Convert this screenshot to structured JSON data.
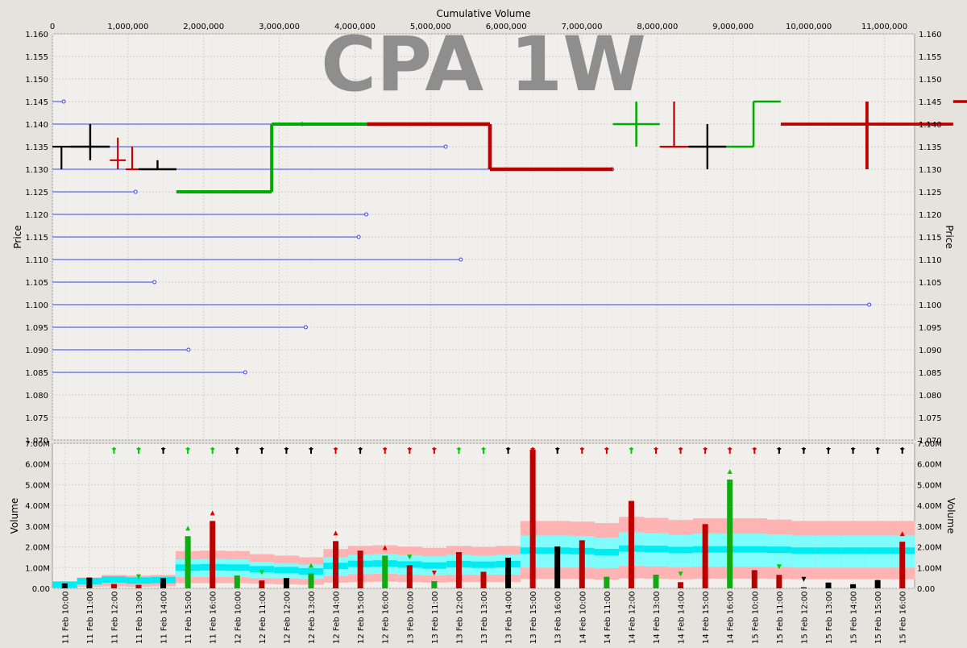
{
  "chart_data": [
    {
      "type": "ohlc",
      "title": "CPA 1W",
      "x_axis_title": "Cumulative Volume",
      "y_axis_title": "Price",
      "x_ticks": [
        0,
        1000000,
        2000000,
        3000000,
        4000000,
        5000000,
        6000000,
        7000000,
        8000000,
        9000000,
        10000000,
        11000000
      ],
      "x_tick_labels": [
        "0",
        "1,000,000",
        "2,000,000",
        "3,000,000",
        "4,000,000",
        "5,000,000",
        "6,000,000",
        "7,000,000",
        "8,000,000",
        "9,000,000",
        "10,000,000",
        "11,000,000"
      ],
      "xlim": [
        0,
        11400000
      ],
      "ylim": [
        1.07,
        1.16
      ],
      "y_ticks": [
        "1.070",
        "1.075",
        "1.080",
        "1.085",
        "1.090",
        "1.095",
        "1.100",
        "1.105",
        "1.110",
        "1.115",
        "1.120",
        "1.125",
        "1.130",
        "1.135",
        "1.140",
        "1.145",
        "1.150",
        "1.155",
        "1.160"
      ],
      "grid": true,
      "bars": [
        {
          "o": 1.135,
          "h": 1.135,
          "l": 1.13,
          "c": 1.135,
          "vol": 0.24,
          "color": "#000000"
        },
        {
          "o": 1.135,
          "h": 1.14,
          "l": 1.132,
          "c": 1.135,
          "vol": 0.52,
          "color": "#000000"
        },
        {
          "o": 1.132,
          "h": 1.137,
          "l": 1.13,
          "c": 1.132,
          "vol": 0.21,
          "color": "#cc0000"
        },
        {
          "o": 1.13,
          "h": 1.135,
          "l": 1.13,
          "c": 1.13,
          "vol": 0.17,
          "color": "#cc0000"
        },
        {
          "o": 1.13,
          "h": 1.132,
          "l": 1.13,
          "c": 1.13,
          "vol": 0.5,
          "color": "#000000"
        },
        {
          "o": 1.125,
          "h": 1.14,
          "l": 1.125,
          "c": 1.14,
          "vol": 2.52,
          "color": "#00aa00"
        },
        {
          "o": 1.14,
          "h": 1.14,
          "l": 1.13,
          "c": 1.13,
          "vol": 3.25,
          "color": "#bb0000"
        },
        {
          "o": 1.14,
          "h": 1.145,
          "l": 1.135,
          "c": 1.14,
          "vol": 0.62,
          "color": "#00aa00"
        },
        {
          "o": 1.135,
          "h": 1.145,
          "l": 1.135,
          "c": 1.135,
          "vol": 0.38,
          "color": "#cc0000"
        },
        {
          "o": 1.135,
          "h": 1.14,
          "l": 1.13,
          "c": 1.135,
          "vol": 0.5,
          "color": "#000000"
        },
        {
          "o": 1.135,
          "h": 1.145,
          "l": 1.135,
          "c": 1.145,
          "vol": 0.72,
          "color": "#00aa00"
        },
        {
          "o": 1.14,
          "h": 1.145,
          "l": 1.13,
          "c": 1.14,
          "vol": 2.28,
          "color": "#bb0000"
        },
        {
          "o": 1.145,
          "h": 1.145,
          "l": 1.13,
          "c": 1.13,
          "vol": 1.82,
          "color": "#bb0000"
        },
        {
          "o": 1.13,
          "h": 1.135,
          "l": 1.13,
          "c": 1.135,
          "vol": 1.58,
          "color": "#00aa00"
        },
        {
          "o": 1.135,
          "h": 1.135,
          "l": 1.115,
          "c": 1.127,
          "vol": 1.12,
          "color": "#cc0000"
        },
        {
          "o": 1.13,
          "h": 1.135,
          "l": 1.125,
          "c": 1.13,
          "vol": 0.35,
          "color": "#00aa00"
        },
        {
          "o": 1.13,
          "h": 1.13,
          "l": 1.12,
          "c": 1.12,
          "vol": 1.75,
          "color": "#bb0000"
        },
        {
          "o": 1.125,
          "h": 1.125,
          "l": 1.117,
          "c": 1.117,
          "vol": 0.8,
          "color": "#cc0000"
        },
        {
          "o": 1.115,
          "h": 1.12,
          "l": 1.115,
          "c": 1.117,
          "vol": 1.48,
          "color": "#000000"
        },
        {
          "o": 1.12,
          "h": 1.12,
          "l": 1.105,
          "c": 1.115,
          "vol": 6.7,
          "color": "#bb0000"
        },
        {
          "o": 1.115,
          "h": 1.115,
          "l": 1.115,
          "c": 1.115,
          "vol": 2.02,
          "color": "#000000"
        },
        {
          "o": 1.12,
          "h": 1.12,
          "l": 1.097,
          "c": 1.1,
          "vol": 2.32,
          "color": "#bb0000"
        },
        {
          "o": 1.1,
          "h": 1.11,
          "l": 1.095,
          "c": 1.107,
          "vol": 0.56,
          "color": "#00aa00"
        },
        {
          "o": 1.107,
          "h": 1.107,
          "l": 1.095,
          "c": 1.097,
          "vol": 4.22,
          "color": "#bb0000"
        },
        {
          "o": 1.1,
          "h": 1.102,
          "l": 1.097,
          "c": 1.1,
          "vol": 0.66,
          "color": "#00aa00"
        },
        {
          "o": 1.102,
          "h": 1.102,
          "l": 1.095,
          "c": 1.097,
          "vol": 0.3,
          "color": "#cc0000"
        },
        {
          "o": 1.1,
          "h": 1.1,
          "l": 1.09,
          "c": 1.095,
          "vol": 3.1,
          "color": "#bb0000"
        },
        {
          "o": 1.095,
          "h": 1.1,
          "l": 1.095,
          "c": 1.1,
          "vol": 5.25,
          "color": "#00aa00"
        },
        {
          "o": 1.1,
          "h": 1.1,
          "l": 1.09,
          "c": 1.095,
          "vol": 0.88,
          "color": "#cc0000"
        },
        {
          "o": 1.095,
          "h": 1.095,
          "l": 1.085,
          "c": 1.09,
          "vol": 0.65,
          "color": "#cc0000"
        },
        {
          "o": 1.09,
          "h": 1.09,
          "l": 1.085,
          "c": 1.09,
          "vol": 0.05,
          "color": "#000000"
        },
        {
          "o": 1.09,
          "h": 1.095,
          "l": 1.085,
          "c": 1.09,
          "vol": 0.28,
          "color": "#000000"
        },
        {
          "o": 1.09,
          "h": 1.095,
          "l": 1.085,
          "c": 1.09,
          "vol": 0.2,
          "color": "#000000"
        },
        {
          "o": 1.09,
          "h": 1.09,
          "l": 1.085,
          "c": 1.09,
          "vol": 0.4,
          "color": "#000000"
        },
        {
          "o": 1.09,
          "h": 1.09,
          "l": 1.085,
          "c": 1.085,
          "vol": 2.25,
          "color": "#bb0000"
        }
      ],
      "price_volume_profile": [
        {
          "price": 1.145,
          "volume": 150000
        },
        {
          "price": 1.14,
          "volume": 3300000
        },
        {
          "price": 1.135,
          "volume": 5200000
        },
        {
          "price": 1.13,
          "volume": 7400000
        },
        {
          "price": 1.125,
          "volume": 1100000
        },
        {
          "price": 1.12,
          "volume": 4150000
        },
        {
          "price": 1.115,
          "volume": 4050000
        },
        {
          "price": 1.11,
          "volume": 5400000
        },
        {
          "price": 1.105,
          "volume": 1350000
        },
        {
          "price": 1.1,
          "volume": 10800000
        },
        {
          "price": 1.095,
          "volume": 3350000
        },
        {
          "price": 1.09,
          "volume": 1800000
        },
        {
          "price": 1.085,
          "volume": 2550000
        }
      ]
    },
    {
      "type": "bar",
      "y_axis_title": "Volume",
      "ylim": [
        0,
        7000000
      ],
      "y_tick_labels": [
        "0.00",
        "1.00M",
        "2.00M",
        "3.00M",
        "4.00M",
        "5.00M",
        "6.00M",
        "7.00M"
      ],
      "categories": [
        "11 Feb 10:00",
        "11 Feb 11:00",
        "11 Feb 12:00",
        "11 Feb 13:00",
        "11 Feb 14:00",
        "11 Feb 15:00",
        "11 Feb 16:00",
        "12 Feb 10:00",
        "12 Feb 11:00",
        "12 Feb 12:00",
        "12 Feb 13:00",
        "12 Feb 14:00",
        "12 Feb 15:00",
        "12 Feb 16:00",
        "13 Feb 10:00",
        "13 Feb 11:00",
        "13 Feb 12:00",
        "13 Feb 13:00",
        "13 Feb 14:00",
        "13 Feb 15:00",
        "13 Feb 16:00",
        "14 Feb 10:00",
        "14 Feb 11:00",
        "14 Feb 12:00",
        "14 Feb 13:00",
        "14 Feb 14:00",
        "14 Feb 15:00",
        "14 Feb 16:00",
        "15 Feb 10:00",
        "15 Feb 11:00",
        "15 Feb 12:00",
        "15 Feb 13:00",
        "15 Feb 14:00",
        "15 Feb 15:00",
        "15 Feb 16:00"
      ],
      "bands": [
        {
          "outer_hi": 0.25,
          "inner_hi": 0.22,
          "center": 0.18,
          "inner_lo": 0.12,
          "outer_lo": 0.05
        },
        {
          "outer_hi": 0.52,
          "inner_hi": 0.45,
          "center": 0.35,
          "inner_lo": 0.2,
          "outer_lo": 0.08
        },
        {
          "outer_hi": 0.65,
          "inner_hi": 0.55,
          "center": 0.42,
          "inner_lo": 0.25,
          "outer_lo": 0.1
        },
        {
          "outer_hi": 0.62,
          "inner_hi": 0.5,
          "center": 0.38,
          "inner_lo": 0.22,
          "outer_lo": 0.08
        },
        {
          "outer_hi": 0.65,
          "inner_hi": 0.52,
          "center": 0.4,
          "inner_lo": 0.25,
          "outer_lo": 0.1
        },
        {
          "outer_hi": 1.8,
          "inner_hi": 1.4,
          "center": 1.0,
          "inner_lo": 0.55,
          "outer_lo": 0.25
        },
        {
          "outer_hi": 1.82,
          "inner_hi": 1.42,
          "center": 1.02,
          "inner_lo": 0.55,
          "outer_lo": 0.25
        },
        {
          "outer_hi": 1.8,
          "inner_hi": 1.4,
          "center": 1.0,
          "inner_lo": 0.55,
          "outer_lo": 0.25
        },
        {
          "outer_hi": 1.65,
          "inner_hi": 1.28,
          "center": 0.92,
          "inner_lo": 0.5,
          "outer_lo": 0.22
        },
        {
          "outer_hi": 1.58,
          "inner_hi": 1.22,
          "center": 0.88,
          "inner_lo": 0.48,
          "outer_lo": 0.2
        },
        {
          "outer_hi": 1.5,
          "inner_hi": 1.15,
          "center": 0.82,
          "inner_lo": 0.45,
          "outer_lo": 0.18
        },
        {
          "outer_hi": 1.9,
          "inner_hi": 1.5,
          "center": 1.08,
          "inner_lo": 0.6,
          "outer_lo": 0.28
        },
        {
          "outer_hi": 2.05,
          "inner_hi": 1.62,
          "center": 1.18,
          "inner_lo": 0.68,
          "outer_lo": 0.3
        },
        {
          "outer_hi": 2.08,
          "inner_hi": 1.65,
          "center": 1.2,
          "inner_lo": 0.7,
          "outer_lo": 0.32
        },
        {
          "outer_hi": 2.02,
          "inner_hi": 1.6,
          "center": 1.15,
          "inner_lo": 0.66,
          "outer_lo": 0.3
        },
        {
          "outer_hi": 1.95,
          "inner_hi": 1.55,
          "center": 1.1,
          "inner_lo": 0.62,
          "outer_lo": 0.28
        },
        {
          "outer_hi": 2.05,
          "inner_hi": 1.62,
          "center": 1.17,
          "inner_lo": 0.66,
          "outer_lo": 0.3
        },
        {
          "outer_hi": 2.0,
          "inner_hi": 1.58,
          "center": 1.14,
          "inner_lo": 0.65,
          "outer_lo": 0.3
        },
        {
          "outer_hi": 2.05,
          "inner_hi": 1.62,
          "center": 1.17,
          "inner_lo": 0.66,
          "outer_lo": 0.3
        },
        {
          "outer_hi": 3.25,
          "inner_hi": 2.55,
          "center": 1.82,
          "inner_lo": 1.0,
          "outer_lo": 0.45
        },
        {
          "outer_hi": 3.25,
          "inner_hi": 2.55,
          "center": 1.82,
          "inner_lo": 1.0,
          "outer_lo": 0.45
        },
        {
          "outer_hi": 3.22,
          "inner_hi": 2.52,
          "center": 1.8,
          "inner_lo": 1.0,
          "outer_lo": 0.45
        },
        {
          "outer_hi": 3.15,
          "inner_hi": 2.45,
          "center": 1.75,
          "inner_lo": 0.98,
          "outer_lo": 0.42
        },
        {
          "outer_hi": 3.45,
          "inner_hi": 2.7,
          "center": 1.92,
          "inner_lo": 1.08,
          "outer_lo": 0.48
        },
        {
          "outer_hi": 3.4,
          "inner_hi": 2.66,
          "center": 1.9,
          "inner_lo": 1.06,
          "outer_lo": 0.46
        },
        {
          "outer_hi": 3.3,
          "inner_hi": 2.58,
          "center": 1.85,
          "inner_lo": 1.02,
          "outer_lo": 0.44
        },
        {
          "outer_hi": 3.38,
          "inner_hi": 2.64,
          "center": 1.88,
          "inner_lo": 1.05,
          "outer_lo": 0.46
        },
        {
          "outer_hi": 3.38,
          "inner_hi": 2.64,
          "center": 1.88,
          "inner_lo": 1.05,
          "outer_lo": 0.46
        },
        {
          "outer_hi": 3.38,
          "inner_hi": 2.64,
          "center": 1.88,
          "inner_lo": 1.05,
          "outer_lo": 0.46
        },
        {
          "outer_hi": 3.32,
          "inner_hi": 2.6,
          "center": 1.86,
          "inner_lo": 1.03,
          "outer_lo": 0.45
        },
        {
          "outer_hi": 3.25,
          "inner_hi": 2.55,
          "center": 1.82,
          "inner_lo": 1.0,
          "outer_lo": 0.44
        },
        {
          "outer_hi": 3.25,
          "inner_hi": 2.55,
          "center": 1.82,
          "inner_lo": 1.0,
          "outer_lo": 0.44
        },
        {
          "outer_hi": 3.25,
          "inner_hi": 2.55,
          "center": 1.82,
          "inner_lo": 1.0,
          "outer_lo": 0.44
        },
        {
          "outer_hi": 3.25,
          "inner_hi": 2.55,
          "center": 1.82,
          "inner_lo": 1.0,
          "outer_lo": 0.44
        },
        {
          "outer_hi": 3.25,
          "inner_hi": 2.55,
          "center": 1.82,
          "inner_lo": 1.0,
          "outer_lo": 0.44
        }
      ],
      "signals": [
        "green",
        "green",
        "black",
        "green",
        "green",
        "black",
        "black",
        "black",
        "black",
        "red",
        "black",
        "red",
        "red",
        "red",
        "green",
        "green",
        "black",
        "red",
        "black",
        "red",
        "red",
        "green",
        "red",
        "red",
        "red",
        "red",
        "black",
        "black",
        "black",
        "black",
        "black",
        "black",
        "black",
        "black",
        "black"
      ],
      "bar_markers": [
        {
          "i": 3,
          "dir": "down",
          "color": "#00cc00"
        },
        {
          "i": 5,
          "dir": "up",
          "color": "#00cc00"
        },
        {
          "i": 6,
          "dir": "up",
          "color": "#dd0000"
        },
        {
          "i": 8,
          "dir": "down",
          "color": "#00cc00"
        },
        {
          "i": 10,
          "dir": "up",
          "color": "#00cc00"
        },
        {
          "i": 11,
          "dir": "up",
          "color": "#dd0000"
        },
        {
          "i": 13,
          "dir": "up",
          "color": "#dd0000"
        },
        {
          "i": 14,
          "dir": "down",
          "color": "#00cc00"
        },
        {
          "i": 15,
          "dir": "down",
          "color": "#dd0000"
        },
        {
          "i": 25,
          "dir": "down",
          "color": "#00cc00"
        },
        {
          "i": 27,
          "dir": "up",
          "color": "#00cc00"
        },
        {
          "i": 29,
          "dir": "down",
          "color": "#00cc00"
        },
        {
          "i": 30,
          "dir": "down",
          "color": "#000000"
        },
        {
          "i": 34,
          "dir": "up",
          "color": "#dd0000"
        }
      ],
      "top_markers": [
        {
          "i": 2,
          "c": "#00cc00"
        },
        {
          "i": 3,
          "c": "#00cc00"
        },
        {
          "i": 4,
          "c": "#000000"
        },
        {
          "i": 5,
          "c": "#00cc00"
        },
        {
          "i": 6,
          "c": "#00cc00"
        },
        {
          "i": 7,
          "c": "#000000"
        },
        {
          "i": 8,
          "c": "#000000"
        },
        {
          "i": 9,
          "c": "#000000"
        },
        {
          "i": 10,
          "c": "#000000"
        },
        {
          "i": 11,
          "c": "#dd0000"
        },
        {
          "i": 12,
          "c": "#000000"
        },
        {
          "i": 13,
          "c": "#dd0000"
        },
        {
          "i": 14,
          "c": "#dd0000"
        },
        {
          "i": 15,
          "c": "#dd0000"
        },
        {
          "i": 16,
          "c": "#00cc00"
        },
        {
          "i": 17,
          "c": "#00cc00"
        },
        {
          "i": 18,
          "c": "#000000"
        },
        {
          "i": 19,
          "c": "#dd0000"
        },
        {
          "i": 20,
          "c": "#000000"
        },
        {
          "i": 21,
          "c": "#dd0000"
        },
        {
          "i": 22,
          "c": "#dd0000"
        },
        {
          "i": 23,
          "c": "#00cc00"
        },
        {
          "i": 24,
          "c": "#dd0000"
        },
        {
          "i": 25,
          "c": "#dd0000"
        },
        {
          "i": 26,
          "c": "#dd0000"
        },
        {
          "i": 27,
          "c": "#dd0000"
        },
        {
          "i": 28,
          "c": "#dd0000"
        },
        {
          "i": 29,
          "c": "#000000"
        },
        {
          "i": 30,
          "c": "#000000"
        },
        {
          "i": 31,
          "c": "#000000"
        },
        {
          "i": 32,
          "c": "#000000"
        },
        {
          "i": 33,
          "c": "#000000"
        },
        {
          "i": 34,
          "c": "#000000"
        }
      ],
      "colors": {
        "band_outer": "#ffb3b3",
        "band_inner": "#7ffcfc",
        "band_center": "#00ecf0",
        "bar_red": "#bb0000",
        "bar_green": "#11aa11",
        "bar_black": "#000000"
      }
    }
  ]
}
